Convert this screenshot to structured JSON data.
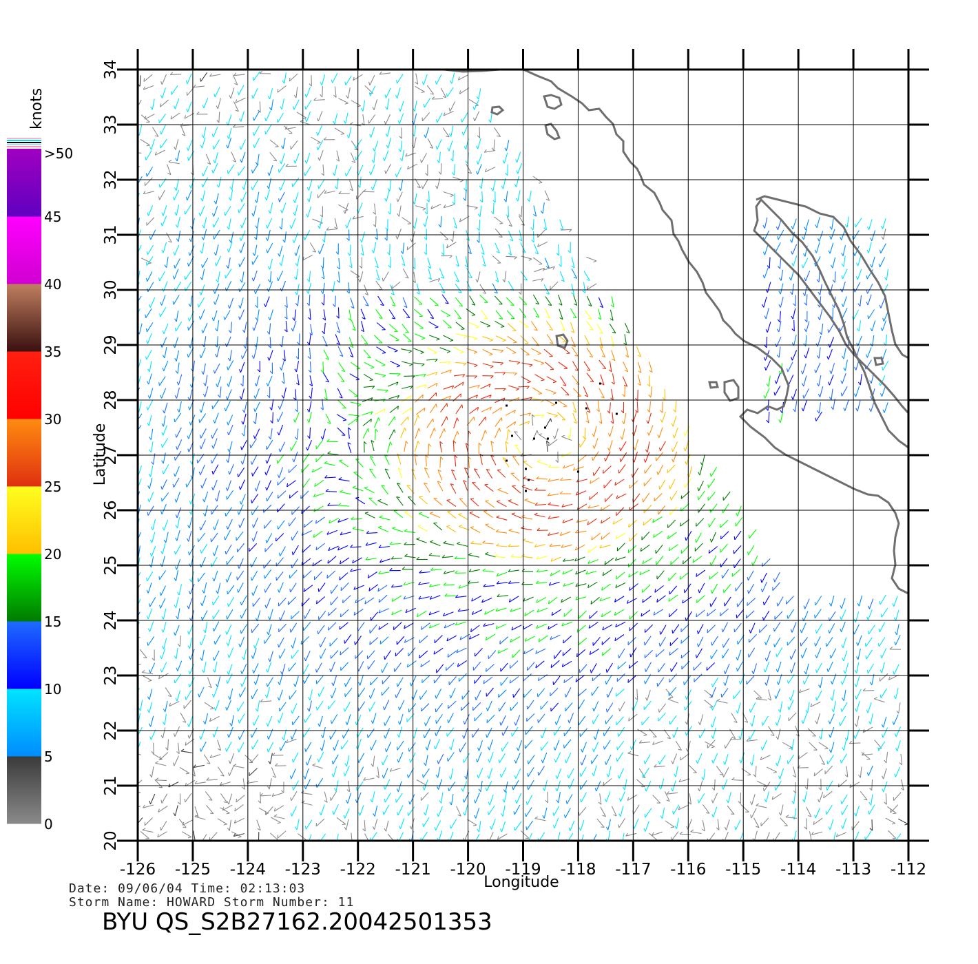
{
  "colorbar": {
    "unit": "knots",
    "segments": [
      {
        "from": 0,
        "to": 5,
        "top": "#3a3a3a",
        "bottom": "#8a8a8a"
      },
      {
        "from": 5,
        "to": 10,
        "top": "#00e5ff",
        "bottom": "#008cff"
      },
      {
        "from": 10,
        "to": 15,
        "top": "#1e6cff",
        "bottom": "#0000ff"
      },
      {
        "from": 15,
        "to": 20,
        "top": "#00ff00",
        "bottom": "#007a00"
      },
      {
        "from": 20,
        "to": 25,
        "top": "#ffff20",
        "bottom": "#ffbf00"
      },
      {
        "from": 25,
        "to": 30,
        "top": "#ff8c10",
        "bottom": "#e03010"
      },
      {
        "from": 30,
        "to": 35,
        "top": "#ff2010",
        "bottom": "#ff0000"
      },
      {
        "from": 35,
        "to": 40,
        "top": "#c08060",
        "bottom": "#3a1010"
      },
      {
        "from": 40,
        "to": 45,
        "top": "#ff00ff",
        "bottom": "#d000d0"
      },
      {
        "from": 45,
        "to": 50,
        "top": "#a000c0",
        "bottom": "#6000c0"
      }
    ],
    "labels": [
      "0",
      "5",
      "10",
      "15",
      "20",
      "25",
      "30",
      "35",
      "40",
      "45",
      ">50"
    ]
  },
  "map": {
    "lon_range": [
      -126,
      -112
    ],
    "lat_range": [
      20,
      34
    ],
    "lon_ticks": [
      "-126",
      "-125",
      "-124",
      "-123",
      "-122",
      "-121",
      "-120",
      "-119",
      "-118",
      "-117",
      "-116",
      "-115",
      "-114",
      "-113",
      "-112"
    ],
    "lat_ticks": [
      "20",
      "21",
      "22",
      "23",
      "24",
      "25",
      "26",
      "27",
      "28",
      "29",
      "30",
      "31",
      "32",
      "33",
      "34"
    ],
    "xlabel": "Longitude",
    "ylabel": "Latitude",
    "storm_center": {
      "lon": -118.6,
      "lat": 27.3
    },
    "coastline_color": "#6e6e6e",
    "grid_color": "#000000"
  },
  "info": {
    "date_line": "Date: 09/06/04   Time: 02:13:03",
    "storm_line": "Storm Name: HOWARD   Storm Number: 11",
    "product_id": "BYU QS_S2B27162.20042501353"
  }
}
